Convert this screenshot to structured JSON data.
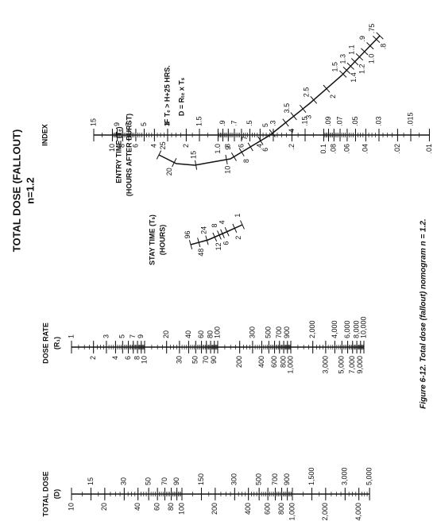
{
  "title": "TOTAL DOSE (FALLOUT)",
  "subtitle": "n=1.2",
  "total_dose": {
    "name": "TOTAL DOSE",
    "symbol": "(D)",
    "labels": [
      "10",
      "15",
      "20",
      "30",
      "40",
      "50",
      "60",
      "70",
      "80",
      "90",
      "100",
      "150",
      "200",
      "300",
      "400",
      "500",
      "600",
      "700",
      "800",
      "900",
      "1,000",
      "1,500",
      "2,000",
      "3,000",
      "4,000",
      "5,000"
    ]
  },
  "dose_rate": {
    "name": "DOSE RATE",
    "symbol": "(R₁)",
    "labels": [
      "1",
      "2",
      "3",
      "4",
      "5",
      "6",
      "7",
      "8",
      "9",
      "10",
      "20",
      "30",
      "40",
      "50",
      "60",
      "70",
      "80",
      "90",
      "100",
      "200",
      "300",
      "400",
      "500",
      "600",
      "700",
      "800",
      "900",
      "1,000",
      "2,000",
      "3,000",
      "4,000",
      "5,000",
      "6,000",
      "7,000",
      "8,000",
      "9,000",
      "10,000"
    ]
  },
  "index": {
    "name": "INDEX",
    "labels": [
      "15",
      "10",
      "9",
      "8",
      "7",
      "6",
      "5",
      "4",
      "3",
      "2",
      "1.5",
      "1.0",
      ".9",
      ".8",
      ".7",
      ".6",
      ".5",
      ".4",
      ".3",
      ".2",
      ".15",
      "0.1",
      ".09",
      ".08",
      ".07",
      ".06",
      ".05",
      ".04",
      ".03",
      ".02",
      ".015",
      ".01"
    ]
  },
  "stay_time": {
    "name": "STAY TIME (Tₛ)",
    "unit": "(HOURS)",
    "labels": [
      "96",
      "48",
      "24",
      "12",
      "8",
      "6",
      "4",
      "2",
      "1"
    ]
  },
  "entry_time": {
    "name": "ENTRY TIME (Tₑ)",
    "unit": "(HOURS AFTER BURST)",
    "labels": [
      "25",
      "20",
      "15",
      "10",
      "9",
      "8",
      "7",
      "6",
      "5",
      "4",
      "3.5",
      "3",
      "2.5",
      "2",
      "1.5",
      "1.4",
      "1.3",
      "1.2",
      "1.1",
      "1.0",
      ".9",
      ".8",
      ".75"
    ]
  },
  "note": [
    "IF Tₑ > H+25 HRS.",
    "D = Rₜₑ x Tₛ"
  ],
  "caption": "Figure 6-12. Total dose (fallout) nomogram n = 1.2."
}
